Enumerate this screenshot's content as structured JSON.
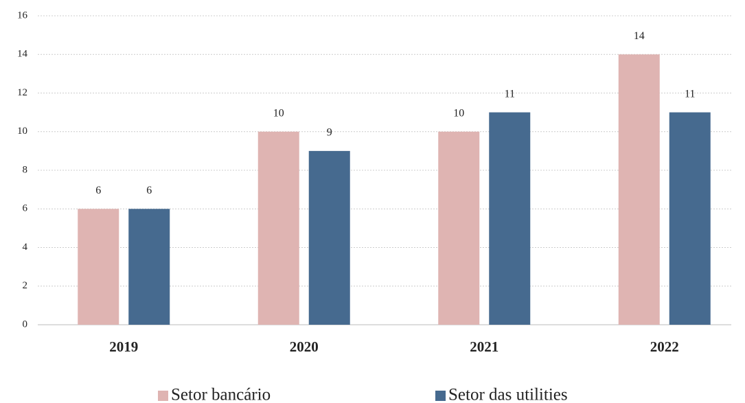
{
  "chart_data": {
    "type": "bar",
    "categories": [
      "2019",
      "2020",
      "2021",
      "2022"
    ],
    "series": [
      {
        "name": "Setor bancário",
        "color": "#dfb4b2",
        "values": [
          6,
          10,
          10,
          14
        ]
      },
      {
        "name": "Setor das utilities",
        "color": "#466a8f",
        "values": [
          6,
          9,
          11,
          11
        ]
      }
    ],
    "ylim": [
      0,
      16
    ],
    "yticks": [
      0,
      2,
      4,
      6,
      8,
      10,
      12,
      14,
      16
    ],
    "grid": true,
    "legend": "bottom"
  }
}
